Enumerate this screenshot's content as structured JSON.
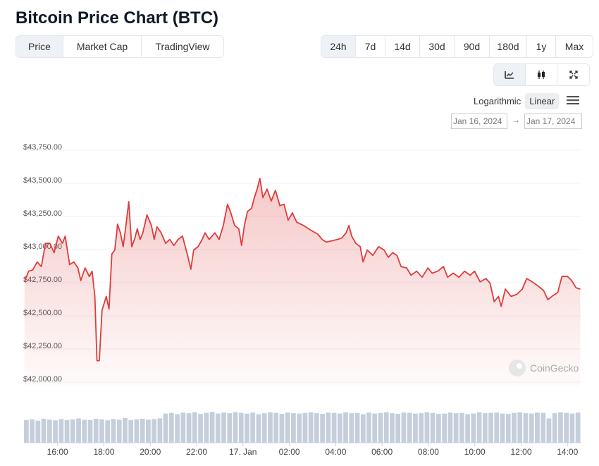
{
  "header": {
    "title": "Bitcoin Price Chart (BTC)"
  },
  "tabs": {
    "items": [
      "Price",
      "Market Cap",
      "TradingView"
    ],
    "active": 0
  },
  "ranges": {
    "items": [
      "24h",
      "7d",
      "14d",
      "30d",
      "90d",
      "180d",
      "1y",
      "Max"
    ],
    "active": 0
  },
  "scale_options": {
    "items": [
      "Logarithmic",
      "Linear"
    ],
    "active": 1
  },
  "date_range": {
    "from": "Jan 16, 2024",
    "separator": "→",
    "to": "Jan 17, 2024"
  },
  "watermark": "CoinGecko",
  "chart_data": {
    "type": "area",
    "color": "#e03b3b",
    "grid": true,
    "xlim": [
      14.55,
      38.6
    ],
    "xticks": [
      {
        "value": 16,
        "label": "16:00"
      },
      {
        "value": 18,
        "label": "18:00"
      },
      {
        "value": 20,
        "label": "20:00"
      },
      {
        "value": 22,
        "label": "22:00"
      },
      {
        "value": 24,
        "label": "17. Jan"
      },
      {
        "value": 26,
        "label": "02:00"
      },
      {
        "value": 28,
        "label": "04:00"
      },
      {
        "value": 30,
        "label": "06:00"
      },
      {
        "value": 32,
        "label": "08:00"
      },
      {
        "value": 34,
        "label": "10:00"
      },
      {
        "value": 36,
        "label": "12:00"
      },
      {
        "value": 38,
        "label": "14:00"
      }
    ],
    "ylim": [
      42000,
      43750
    ],
    "yticks": [
      {
        "value": 42000,
        "label": "$42,000.00"
      },
      {
        "value": 42250,
        "label": "$42,250.00"
      },
      {
        "value": 42500,
        "label": "$42,500.00"
      },
      {
        "value": 42750,
        "label": "$42,750.00"
      },
      {
        "value": 43000,
        "label": "$43,000.00"
      },
      {
        "value": 43250,
        "label": "$43,250.00"
      },
      {
        "value": 43500,
        "label": "$43,500.00"
      },
      {
        "value": 43750,
        "label": "$43,750.00"
      }
    ],
    "x": [
      14.57,
      14.75,
      14.93,
      15.12,
      15.3,
      15.48,
      15.67,
      15.85,
      16.03,
      16.21,
      16.33,
      16.52,
      16.7,
      16.88,
      17.0,
      17.19,
      17.37,
      17.49,
      17.61,
      17.7,
      17.8,
      17.92,
      18.1,
      18.22,
      18.34,
      18.47,
      18.59,
      18.71,
      18.83,
      18.95,
      19.07,
      19.2,
      19.32,
      19.44,
      19.56,
      19.68,
      19.86,
      20.05,
      20.17,
      20.29,
      20.47,
      20.66,
      20.84,
      21.02,
      21.2,
      21.39,
      21.51,
      21.63,
      21.75,
      21.87,
      22.06,
      22.24,
      22.36,
      22.54,
      22.79,
      22.97,
      23.15,
      23.33,
      23.46,
      23.64,
      23.82,
      23.94,
      24.06,
      24.19,
      24.37,
      24.49,
      24.61,
      24.73,
      24.86,
      25.04,
      25.22,
      25.4,
      25.59,
      25.77,
      25.95,
      26.13,
      26.32,
      26.62,
      26.92,
      27.23,
      27.41,
      27.59,
      27.84,
      28.08,
      28.26,
      28.45,
      28.57,
      28.69,
      28.87,
      29.06,
      29.18,
      29.36,
      29.6,
      29.85,
      30.09,
      30.27,
      30.46,
      30.64,
      30.82,
      31.06,
      31.25,
      31.49,
      31.73,
      31.98,
      32.16,
      32.4,
      32.65,
      32.83,
      33.07,
      33.32,
      33.56,
      33.8,
      33.99,
      34.23,
      34.48,
      34.66,
      34.84,
      35.02,
      35.14,
      35.32,
      35.57,
      35.81,
      36.05,
      36.24,
      36.48,
      36.72,
      36.97,
      37.15,
      37.33,
      37.58,
      37.76,
      38.0,
      38.18,
      38.37,
      38.55
    ],
    "values": [
      42730,
      42810,
      42820,
      42880,
      42845,
      43020,
      43020,
      42950,
      43075,
      43020,
      43075,
      42860,
      42880,
      42835,
      42740,
      42835,
      42770,
      42810,
      42620,
      42135,
      42135,
      42515,
      42620,
      42525,
      42940,
      42970,
      43165,
      43100,
      42995,
      43155,
      43335,
      42995,
      43050,
      43130,
      43050,
      43100,
      43235,
      43155,
      43050,
      43145,
      43100,
      43020,
      43050,
      43005,
      43050,
      43075,
      42995,
      42915,
      42825,
      42970,
      42995,
      43050,
      43100,
      43050,
      43100,
      43050,
      43155,
      43315,
      43260,
      43155,
      43130,
      43005,
      43155,
      43260,
      43285,
      43365,
      43430,
      43510,
      43365,
      43430,
      43340,
      43420,
      43305,
      43315,
      43195,
      43250,
      43180,
      43155,
      43120,
      43090,
      43050,
      43030,
      43040,
      43050,
      43060,
      43100,
      43155,
      43075,
      43020,
      42995,
      42880,
      42970,
      42930,
      42995,
      42970,
      42915,
      42950,
      42930,
      42845,
      42835,
      42780,
      42810,
      42765,
      42835,
      42795,
      42810,
      42845,
      42765,
      42795,
      42765,
      42810,
      42780,
      42810,
      42730,
      42755,
      42720,
      42580,
      42620,
      42545,
      42675,
      42620,
      42635,
      42675,
      42755,
      42730,
      42700,
      42665,
      42595,
      42620,
      42650,
      42770,
      42770,
      42740,
      42685,
      42675
    ],
    "volume": {
      "color": "#c5cedb",
      "values": [
        70,
        72,
        68,
        74,
        71,
        69,
        73,
        70,
        72,
        75,
        71,
        70,
        74,
        72,
        69,
        73,
        71,
        76,
        70,
        72,
        74,
        71,
        73,
        75,
        90,
        92,
        88,
        93,
        91,
        94,
        89,
        92,
        95,
        90,
        93,
        91,
        94,
        92,
        90,
        93,
        88,
        91,
        94,
        92,
        89,
        93,
        91,
        90,
        92,
        94,
        91,
        89,
        93,
        92,
        90,
        94,
        91,
        92,
        88,
        93,
        90,
        92,
        94,
        91,
        89,
        93,
        92,
        90,
        91,
        94,
        92,
        89,
        90,
        93,
        91,
        92,
        88,
        90,
        94,
        91,
        92,
        93,
        90,
        89,
        92,
        94,
        91,
        90,
        93,
        92,
        75,
        91,
        94,
        92,
        90,
        93
      ]
    }
  }
}
